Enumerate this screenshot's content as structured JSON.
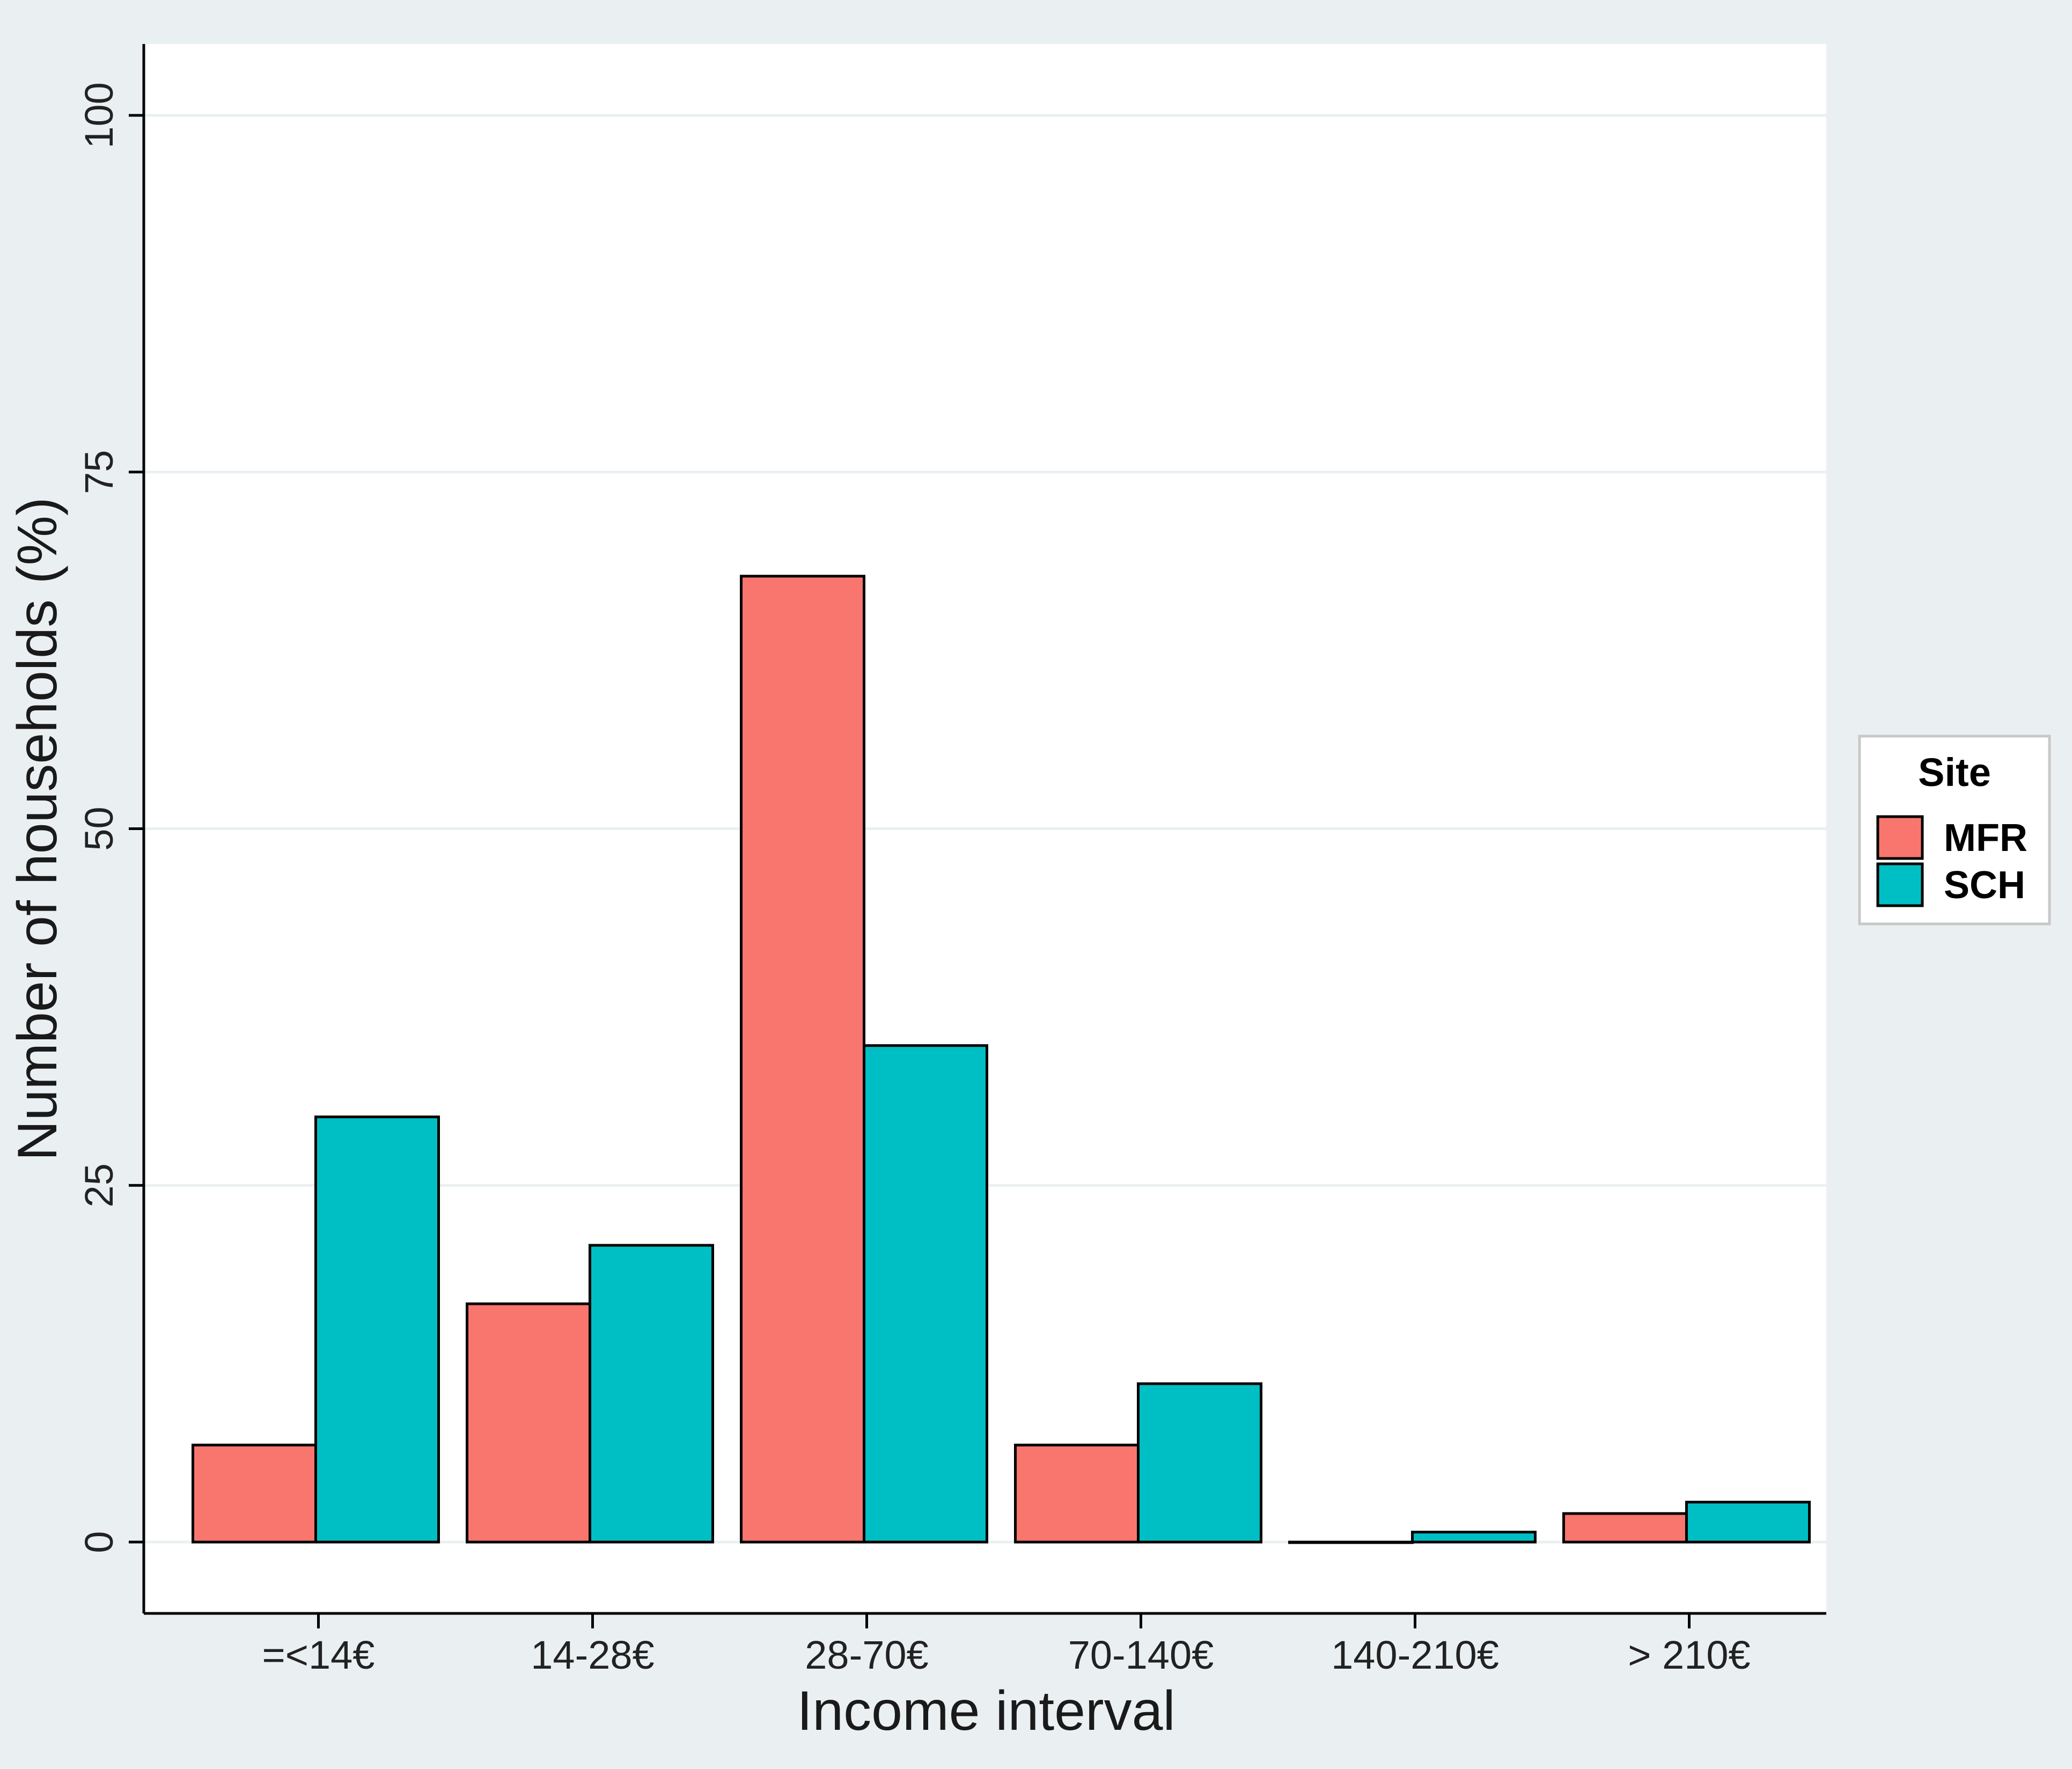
{
  "chart_data": {
    "type": "bar",
    "title": "",
    "xlabel": "Income interval",
    "ylabel": "Number of households (%)",
    "categories": [
      "=<14€",
      "14-28€",
      "28-70€",
      "70-140€",
      "140-210€",
      "> 210€"
    ],
    "series": [
      {
        "name": "MFR",
        "color": "#f8766d",
        "values": [
          6.8,
          16.7,
          67.7,
          6.8,
          0.0,
          2.0
        ]
      },
      {
        "name": "SCH",
        "color": "#00bfc4",
        "values": [
          29.8,
          20.8,
          34.8,
          11.1,
          0.7,
          2.8
        ]
      }
    ],
    "ylim": [
      -5,
      105
    ],
    "yticks": [
      0,
      25,
      50,
      75,
      100
    ],
    "grid": true,
    "legend": {
      "title": "Site",
      "position": "right"
    },
    "colors": {
      "page_background": "#eaf0f2",
      "plot_background": "#ffffff",
      "gridline": "#eaf0f2",
      "bar_outline": "#000000"
    }
  }
}
